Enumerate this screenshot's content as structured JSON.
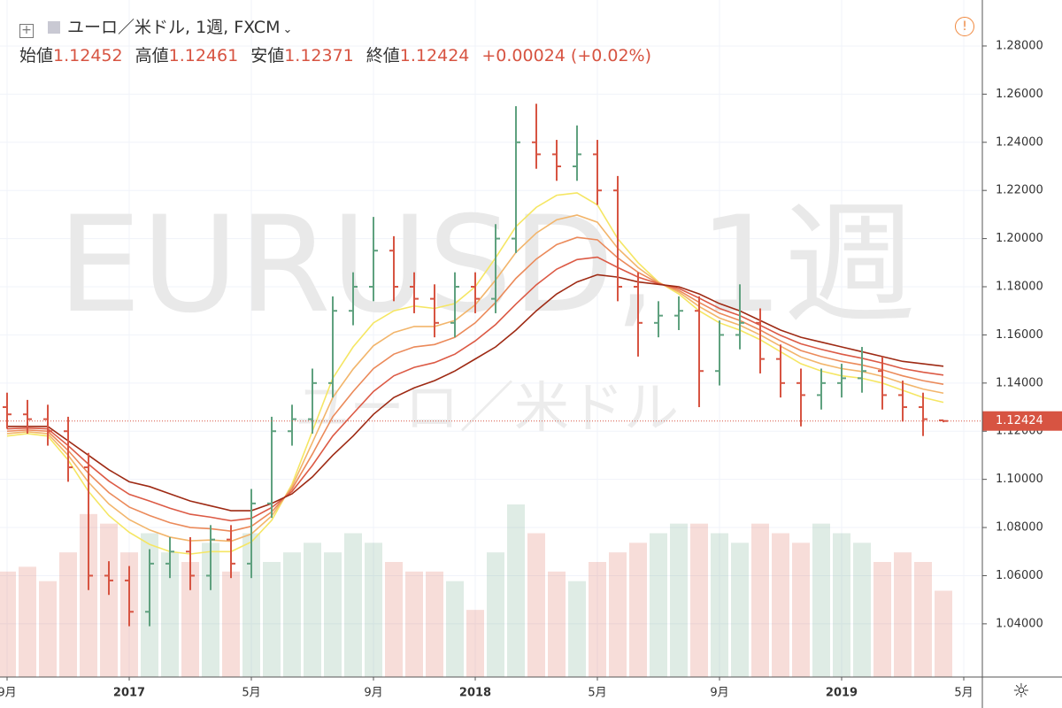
{
  "header": {
    "symbol": "ユーロ／米ドル, 1週, FXCM",
    "open_label": "始値",
    "high_label": "高値",
    "low_label": "安値",
    "close_label": "終値",
    "change": "+0.00024 (+0.02%)"
  },
  "watermark": {
    "title": "EURUSD, 1週",
    "subtitle": "ユーロ／米ドル"
  },
  "chart_data": {
    "type": "ohlc",
    "categories": [
      "9月",
      null,
      null,
      null,
      null,
      null,
      "2017",
      null,
      null,
      null,
      null,
      null,
      "5月",
      null,
      null,
      null,
      null,
      null,
      "9月",
      null,
      null,
      null,
      null,
      "2018",
      null,
      null,
      null,
      null,
      null,
      "5月",
      null,
      null,
      null,
      null,
      null,
      "9月",
      null,
      null,
      null,
      null,
      null,
      "2019",
      null,
      null,
      null,
      null,
      null,
      "5月"
    ],
    "open": [
      1.13,
      1.127,
      1.125,
      1.12,
      1.105,
      1.06,
      1.058,
      1.045,
      1.065,
      1.07,
      1.06,
      1.075,
      1.065,
      1.09,
      1.12,
      1.125,
      1.14,
      1.17,
      1.18,
      1.195,
      1.18,
      1.175,
      1.165,
      1.18,
      1.175,
      1.2,
      1.24,
      1.235,
      1.23,
      1.235,
      1.22,
      1.18,
      1.165,
      1.168,
      1.17,
      1.145,
      1.16,
      1.165,
      1.15,
      1.14,
      1.135,
      1.14,
      1.142,
      1.145,
      1.135,
      1.13,
      1.12452,
      null
    ],
    "high": [
      1.136,
      1.133,
      1.131,
      1.126,
      1.111,
      1.066,
      1.064,
      1.071,
      1.076,
      1.076,
      1.081,
      1.081,
      1.096,
      1.126,
      1.131,
      1.146,
      1.176,
      1.186,
      1.209,
      1.201,
      1.186,
      1.181,
      1.186,
      1.186,
      1.206,
      1.255,
      1.256,
      1.241,
      1.247,
      1.241,
      1.226,
      1.186,
      1.174,
      1.176,
      1.176,
      1.166,
      1.181,
      1.171,
      1.156,
      1.146,
      1.146,
      1.148,
      1.155,
      1.151,
      1.141,
      1.136,
      1.12461,
      null
    ],
    "low": [
      1.121,
      1.119,
      1.114,
      1.099,
      1.054,
      1.052,
      1.039,
      1.039,
      1.059,
      1.054,
      1.054,
      1.059,
      1.059,
      1.084,
      1.114,
      1.119,
      1.134,
      1.164,
      1.174,
      1.174,
      1.169,
      1.159,
      1.159,
      1.169,
      1.169,
      1.194,
      1.229,
      1.224,
      1.224,
      1.214,
      1.174,
      1.151,
      1.159,
      1.162,
      1.13,
      1.139,
      1.154,
      1.144,
      1.134,
      1.122,
      1.129,
      1.134,
      1.136,
      1.129,
      1.124,
      1.118,
      1.12371,
      null
    ],
    "close": [
      1.127,
      1.125,
      1.12,
      1.105,
      1.06,
      1.058,
      1.045,
      1.065,
      1.07,
      1.06,
      1.075,
      1.065,
      1.09,
      1.12,
      1.125,
      1.14,
      1.17,
      1.18,
      1.195,
      1.18,
      1.175,
      1.165,
      1.18,
      1.175,
      1.2,
      1.24,
      1.235,
      1.23,
      1.235,
      1.22,
      1.18,
      1.165,
      1.168,
      1.17,
      1.145,
      1.16,
      1.165,
      1.15,
      1.14,
      1.135,
      1.14,
      1.142,
      1.145,
      1.135,
      1.13,
      1.125,
      1.12424,
      null
    ],
    "volume": [
      110,
      115,
      100,
      130,
      170,
      160,
      130,
      150,
      130,
      120,
      140,
      110,
      150,
      120,
      130,
      140,
      130,
      150,
      140,
      120,
      110,
      110,
      100,
      70,
      130,
      180,
      150,
      110,
      100,
      120,
      130,
      140,
      150,
      160,
      160,
      150,
      140,
      160,
      150,
      140,
      160,
      150,
      140,
      120,
      130,
      120,
      90,
      null
    ],
    "ma_series": [
      {
        "color": "#f5e663",
        "values": [
          1.118,
          1.119,
          1.118,
          1.108,
          1.095,
          1.085,
          1.078,
          1.073,
          1.07,
          1.069,
          1.07,
          1.07,
          1.074,
          1.083,
          1.098,
          1.12,
          1.142,
          1.155,
          1.165,
          1.17,
          1.172,
          1.171,
          1.173,
          1.18,
          1.192,
          1.205,
          1.213,
          1.218,
          1.219,
          1.214,
          1.2,
          1.19,
          1.182,
          1.177,
          1.17,
          1.165,
          1.162,
          1.158,
          1.153,
          1.148,
          1.145,
          1.143,
          1.142,
          1.14,
          1.137,
          1.134,
          1.132,
          null
        ]
      },
      {
        "color": "#f2b56b",
        "values": [
          1.119,
          1.1198,
          1.119,
          1.11,
          1.0988,
          1.0898,
          1.0833,
          1.079,
          1.076,
          1.0745,
          1.0748,
          1.0743,
          1.0773,
          1.0848,
          1.097,
          1.1153,
          1.134,
          1.1458,
          1.1555,
          1.161,
          1.1635,
          1.1635,
          1.166,
          1.1725,
          1.1828,
          1.1943,
          1.2023,
          1.2078,
          1.2098,
          1.2068,
          1.196,
          1.188,
          1.1818,
          1.1778,
          1.1718,
          1.167,
          1.164,
          1.16,
          1.1553,
          1.1508,
          1.148,
          1.146,
          1.1448,
          1.1428,
          1.14,
          1.1375,
          1.1358,
          null
        ]
      },
      {
        "color": "#eb8a5a",
        "values": [
          1.12,
          1.1205,
          1.12,
          1.112,
          1.1025,
          1.0945,
          1.0885,
          1.085,
          1.082,
          1.08,
          1.0795,
          1.0785,
          1.0805,
          1.0865,
          1.096,
          1.1105,
          1.126,
          1.1365,
          1.146,
          1.152,
          1.155,
          1.156,
          1.159,
          1.165,
          1.1735,
          1.1835,
          1.1915,
          1.1975,
          1.2005,
          1.1995,
          1.192,
          1.186,
          1.1815,
          1.1785,
          1.1735,
          1.169,
          1.166,
          1.162,
          1.1575,
          1.1535,
          1.151,
          1.149,
          1.1475,
          1.1455,
          1.143,
          1.141,
          1.1395,
          null
        ]
      },
      {
        "color": "#dc5a45",
        "values": [
          1.121,
          1.1213,
          1.121,
          1.114,
          1.1063,
          1.0993,
          1.0938,
          1.091,
          1.088,
          1.0855,
          1.0843,
          1.0828,
          1.0838,
          1.0883,
          1.095,
          1.1058,
          1.118,
          1.1273,
          1.1365,
          1.143,
          1.1465,
          1.1485,
          1.152,
          1.1575,
          1.1643,
          1.1728,
          1.1808,
          1.1873,
          1.1913,
          1.1923,
          1.188,
          1.184,
          1.1813,
          1.1793,
          1.1753,
          1.171,
          1.168,
          1.164,
          1.1598,
          1.1563,
          1.154,
          1.152,
          1.1503,
          1.1483,
          1.146,
          1.1445,
          1.1433,
          null
        ]
      },
      {
        "color": "#9e2a14",
        "values": [
          1.122,
          1.122,
          1.122,
          1.116,
          1.11,
          1.104,
          1.099,
          1.097,
          1.094,
          1.091,
          1.089,
          1.087,
          1.087,
          1.09,
          1.094,
          1.101,
          1.11,
          1.118,
          1.127,
          1.134,
          1.138,
          1.141,
          1.145,
          1.15,
          1.155,
          1.162,
          1.17,
          1.177,
          1.182,
          1.185,
          1.184,
          1.182,
          1.181,
          1.18,
          1.177,
          1.173,
          1.17,
          1.166,
          1.162,
          1.159,
          1.157,
          1.155,
          1.153,
          1.151,
          1.149,
          1.148,
          1.147,
          null
        ]
      }
    ],
    "up_color": "#5fa17f",
    "down_color": "#d75442",
    "ylim": [
      1.0179,
      1.2991
    ],
    "yticks": [
      {
        "value": 1.04,
        "label": "1.04000"
      },
      {
        "value": 1.06,
        "label": "1.06000"
      },
      {
        "value": 1.08,
        "label": "1.08000"
      },
      {
        "value": 1.1,
        "label": "1.10000"
      },
      {
        "value": 1.12,
        "label": "1.12000"
      },
      {
        "value": 1.14,
        "label": "1.14000"
      },
      {
        "value": 1.16,
        "label": "1.16000"
      },
      {
        "value": 1.18,
        "label": "1.18000"
      },
      {
        "value": 1.2,
        "label": "1.20000"
      },
      {
        "value": 1.22,
        "label": "1.22000"
      },
      {
        "value": 1.24,
        "label": "1.24000"
      },
      {
        "value": 1.26,
        "label": "1.26000"
      },
      {
        "value": 1.28,
        "label": "1.28000"
      }
    ],
    "grid": true
  }
}
